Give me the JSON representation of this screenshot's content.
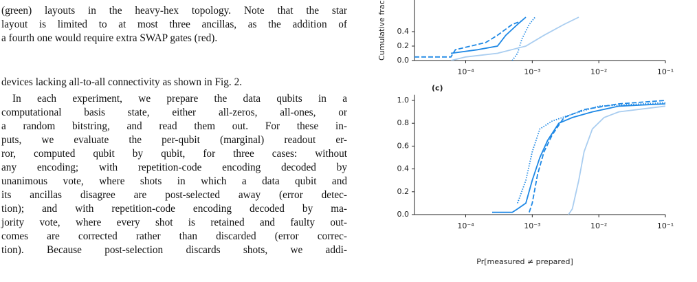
{
  "text": {
    "caption_lines": [
      "(green) layouts in the heavy-hex topology. Note that the star",
      "layout is limited to at most three ancillas, as the addition of",
      "a fourth one would require extra SWAP gates (red)."
    ],
    "paragraphs": [
      [
        "devices lacking all-to-all connectivity as shown in Fig. 2."
      ],
      [
        "In each experiment, we prepare the data qubits in a",
        "computational basis state, either all-zeros, all-ones, or",
        "a random bitstring, and read them out. For these in-",
        "puts, we evaluate the per-qubit (marginal) readout er-",
        "ror, computed qubit by qubit, for three cases: without",
        "any encoding; with repetition-code encoding decoded by",
        "unanimous vote, where shots in which a data qubit and",
        "its ancillas disagree are post-selected away (error detec-",
        "tion); and with repetition-code encoding decoded by ma-",
        "jority vote, where every shot is retained and faulty out-",
        "comes are corrected rather than discarded (error correc-",
        "tion). Because post-selection discards shots, we addi-"
      ]
    ]
  },
  "chart_data": [
    {
      "type": "line",
      "ylabel": "Cumulative frac",
      "xscale": "log",
      "xlim": [
        1.7e-05,
        0.1
      ],
      "ylim": [
        0,
        1.05
      ],
      "xticks": [
        {
          "value": 0.0001,
          "label": "10⁻⁴"
        },
        {
          "value": 0.001,
          "label": "10⁻³"
        },
        {
          "value": 0.01,
          "label": "10⁻²"
        },
        {
          "value": 0.1,
          "label": "10⁻¹"
        }
      ],
      "yticks": [
        {
          "value": 0,
          "label": "0.0"
        },
        {
          "value": 0.2,
          "label": "0.2"
        },
        {
          "value": 0.4,
          "label": "0.4"
        }
      ],
      "series": [
        {
          "color": "#1e88e5",
          "dash": "dashed",
          "x": [
            1.7e-05,
            6e-05,
            7e-05,
            0.0002,
            0.0003,
            0.0005,
            0.0007
          ],
          "values": [
            0.05,
            0.05,
            0.15,
            0.25,
            0.35,
            0.5,
            0.55
          ]
        },
        {
          "color": "#1e88e5",
          "dash": "solid",
          "x": [
            6e-05,
            0.00015,
            0.0003,
            0.0004,
            0.0006,
            0.0008
          ],
          "values": [
            0.1,
            0.15,
            0.2,
            0.35,
            0.5,
            0.6
          ]
        },
        {
          "color": "#1e88e5",
          "dash": "dotted",
          "x": [
            0.0005,
            0.0006,
            0.0007,
            0.0009,
            0.0011
          ],
          "values": [
            0,
            0.1,
            0.3,
            0.5,
            0.6
          ]
        },
        {
          "color": "#a9cdf0",
          "dash": "solid",
          "x": [
            6e-05,
            0.0001,
            0.0003,
            0.0008,
            0.0015,
            0.003,
            0.005
          ],
          "values": [
            0,
            0.05,
            0.1,
            0.2,
            0.35,
            0.5,
            0.6
          ]
        }
      ]
    },
    {
      "type": "line",
      "panel_label": "(c)",
      "xlabel": "Pr[measured ≠ prepared]",
      "xscale": "log",
      "xlim": [
        1.7e-05,
        0.1
      ],
      "ylim": [
        0,
        1.05
      ],
      "xticks": [
        {
          "value": 0.0001,
          "label": "10⁻⁴"
        },
        {
          "value": 0.001,
          "label": "10⁻³"
        },
        {
          "value": 0.01,
          "label": "10⁻²"
        },
        {
          "value": 0.1,
          "label": "10⁻¹"
        }
      ],
      "yticks": [
        {
          "value": 0,
          "label": "0.0"
        },
        {
          "value": 0.2,
          "label": "0.2"
        },
        {
          "value": 0.4,
          "label": "0.4"
        },
        {
          "value": 0.6,
          "label": "0.6"
        },
        {
          "value": 0.8,
          "label": "0.8"
        },
        {
          "value": 1,
          "label": "1.0"
        }
      ],
      "series": [
        {
          "color": "#1e88e5",
          "dash": "solid",
          "x": [
            0.00025,
            0.0005,
            0.0006,
            0.0008,
            0.001,
            0.0013,
            0.0017,
            0.0025,
            0.004,
            0.008,
            0.02,
            0.1
          ],
          "values": [
            0.02,
            0.02,
            0.05,
            0.1,
            0.3,
            0.5,
            0.65,
            0.8,
            0.85,
            0.9,
            0.95,
            0.97
          ]
        },
        {
          "color": "#1e88e5",
          "dash": "dashed",
          "x": [
            0.0009,
            0.001,
            0.0012,
            0.0015,
            0.002,
            0.003,
            0.006,
            0.02,
            0.1
          ],
          "values": [
            0.02,
            0.1,
            0.35,
            0.55,
            0.7,
            0.85,
            0.92,
            0.97,
            1
          ]
        },
        {
          "color": "#1e88e5",
          "dash": "dotted",
          "x": [
            0.0006,
            0.0008,
            0.001,
            0.0013,
            0.002,
            0.004,
            0.01,
            0.1
          ],
          "values": [
            0.1,
            0.3,
            0.55,
            0.75,
            0.82,
            0.88,
            0.95,
            0.98
          ]
        },
        {
          "color": "#a9cdf0",
          "dash": "solid",
          "x": [
            0.0035,
            0.004,
            0.005,
            0.006,
            0.008,
            0.012,
            0.02,
            0.1
          ],
          "values": [
            0,
            0.05,
            0.3,
            0.55,
            0.75,
            0.85,
            0.9,
            0.95
          ]
        }
      ]
    }
  ]
}
